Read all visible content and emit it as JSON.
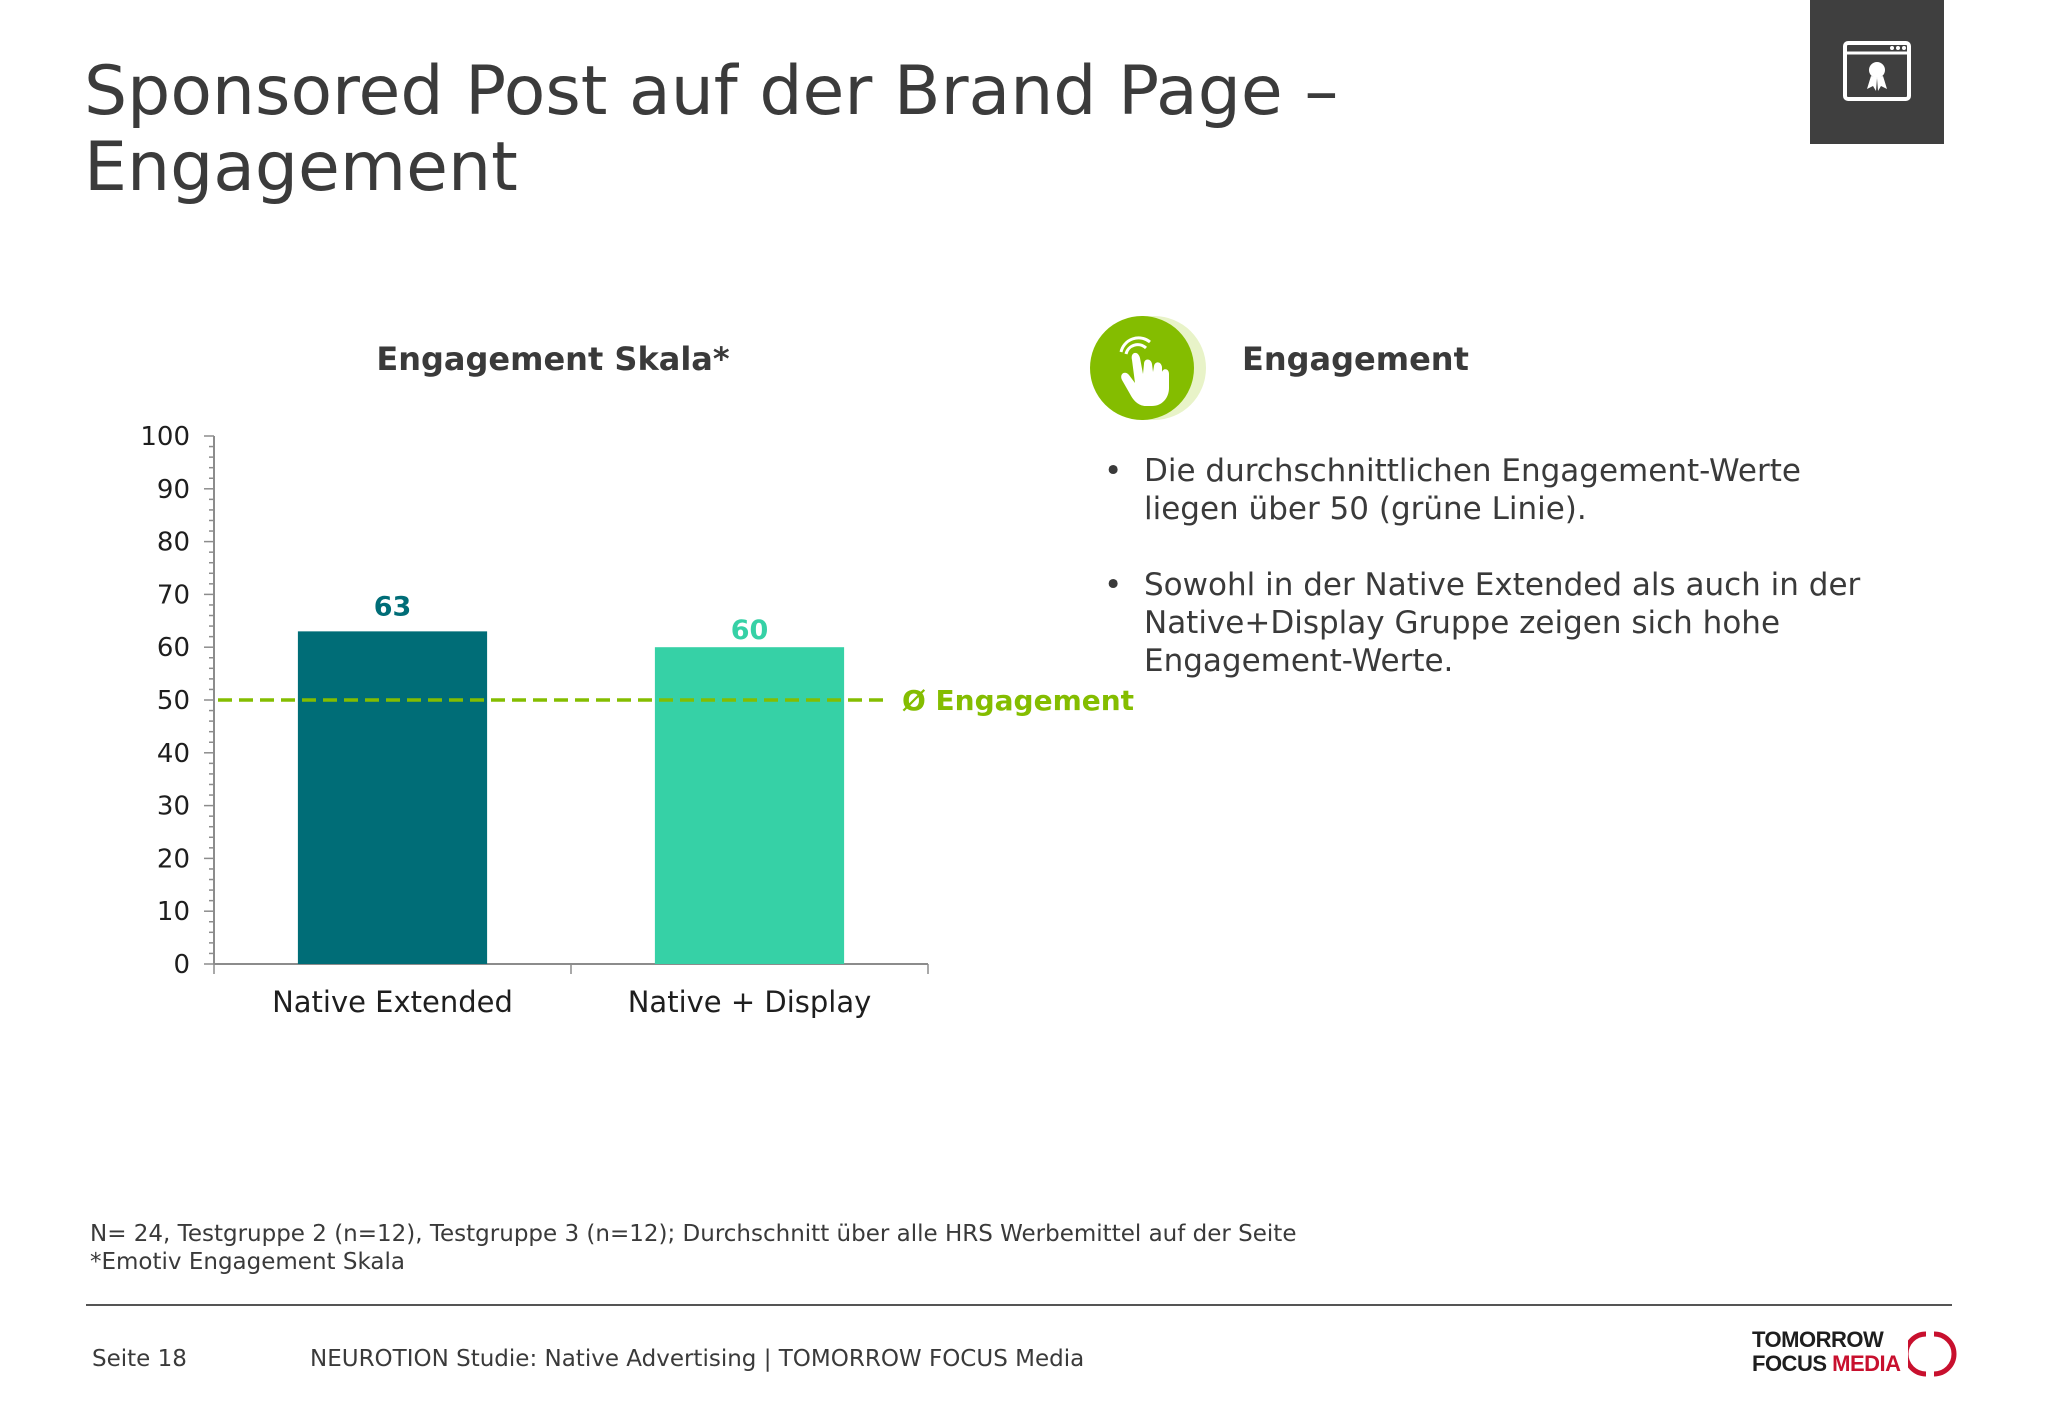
{
  "slide": {
    "title_line1": "Sponsored Post auf der Brand Page –",
    "title_line2": "Engagement"
  },
  "icons": {
    "corner": "certificate-browser-icon",
    "engagement": "hand-tap-icon"
  },
  "chart_data": {
    "type": "bar",
    "title": "Engagement Skala*",
    "categories": [
      "Native Extended",
      "Native + Display"
    ],
    "values": [
      63,
      60
    ],
    "data_labels": [
      "63",
      "60"
    ],
    "bar_colors": [
      "#006d77",
      "#36d1a6"
    ],
    "ylim": [
      0,
      100
    ],
    "yticks": [
      0,
      10,
      20,
      30,
      40,
      50,
      60,
      70,
      80,
      90,
      100
    ],
    "grid": false,
    "reference_line": {
      "value": 50,
      "label": "Ø Engagement",
      "color": "#84bd00",
      "style": "dashed"
    }
  },
  "side_panel": {
    "heading": "Engagement",
    "bullets": [
      {
        "line1": "Die durchschnittlichen Engagement-Werte",
        "line2": "liegen über 50 (grüne Linie).",
        "line3": ""
      },
      {
        "line1": "Sowohl in der Native Extended als auch in der",
        "line2": "Native+Display Gruppe zeigen sich hohe",
        "line3": "Engagement-Werte."
      }
    ],
    "bullet_glyph": "•"
  },
  "footnote": {
    "line1": "N= 24, Testgruppe 2 (n=12), Testgruppe 3 (n=12); Durchschnitt über alle HRS Werbemittel auf der Seite",
    "line2": "*Emotiv Engagement Skala"
  },
  "footer": {
    "page": "Seite 18",
    "text": "NEUROTION Studie: Native Advertising | TOMORROW FOCUS Media",
    "logo_line1": "TOMORROW",
    "logo_line2a": "FOCUS ",
    "logo_line2b": "MEDIA"
  },
  "colors": {
    "accent_green": "#84bd00",
    "bar_dark": "#006d77",
    "bar_light": "#36d1a6",
    "text": "#3a3a3a",
    "logo_red": "#c8102e"
  }
}
